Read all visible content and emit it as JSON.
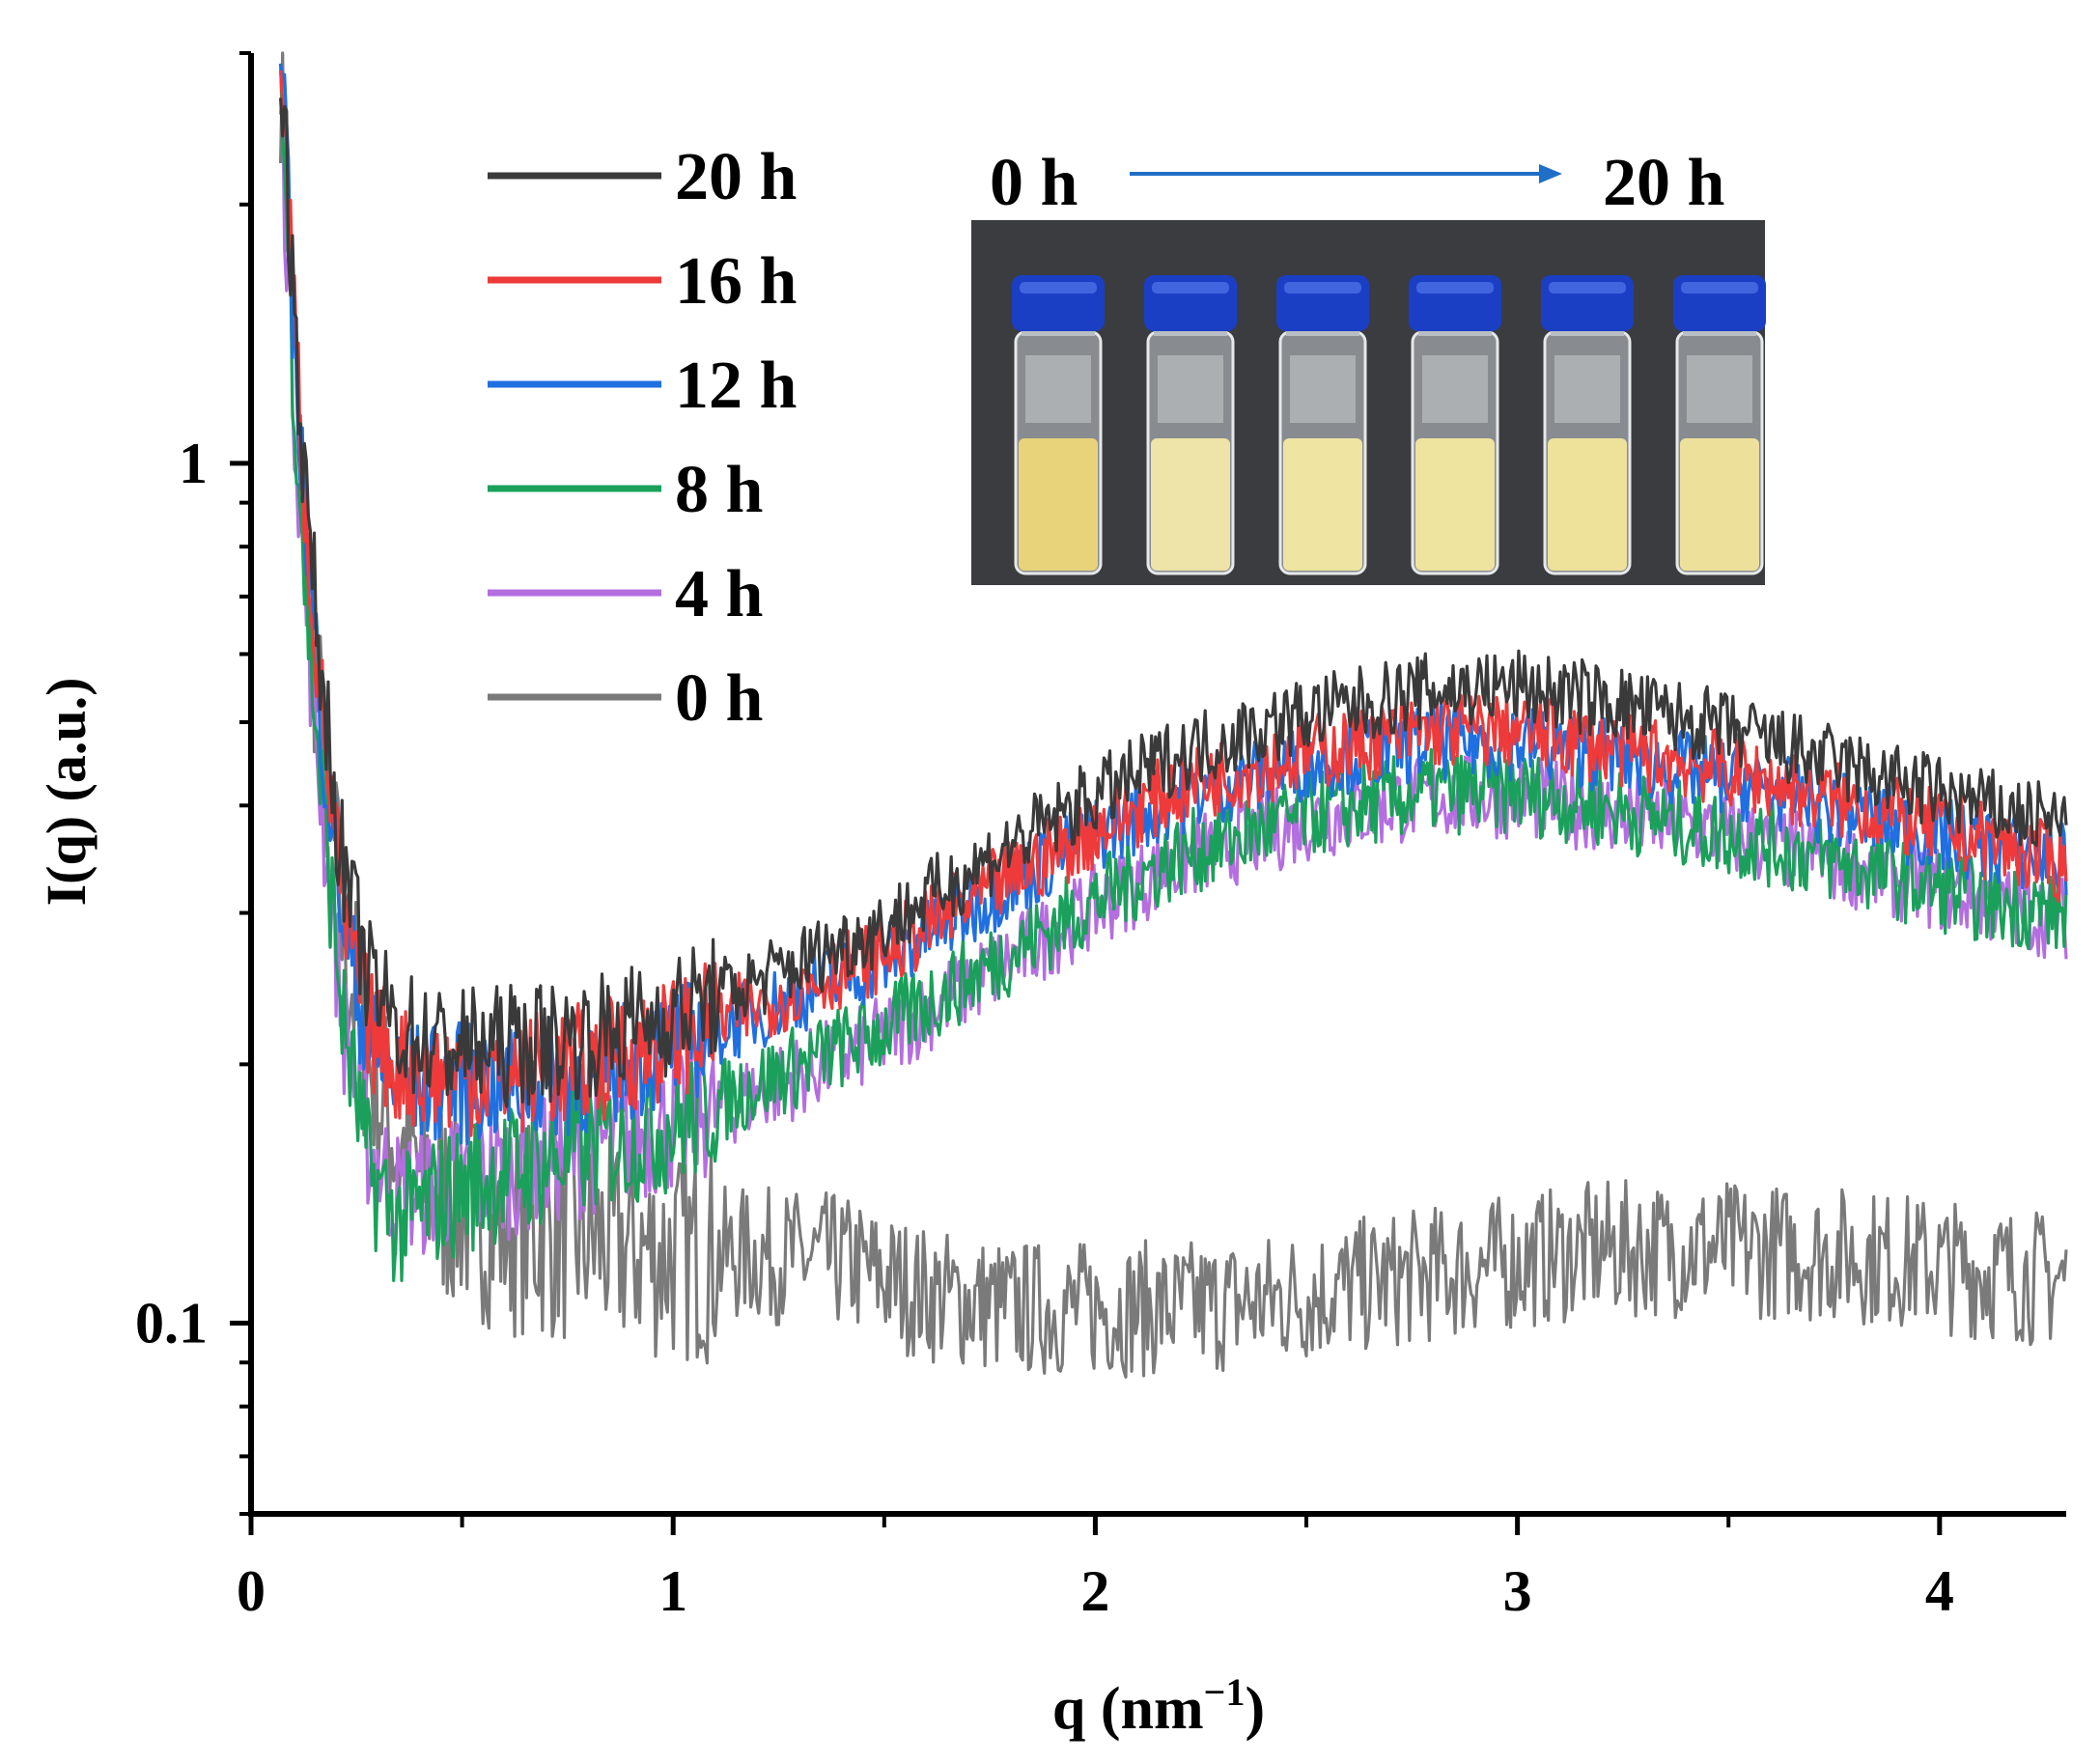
{
  "chart_data": {
    "type": "line",
    "title": "",
    "xlabel": "q (nm",
    "xlabel_superscript": "−1",
    "xlabel_close": ")",
    "ylabel": "I(q) (a.u.)",
    "x_scale": "linear",
    "y_scale": "log",
    "xlim": [
      0,
      4.3
    ],
    "ylim": [
      0.06,
      3.0
    ],
    "x_ticks": [
      0,
      1,
      2,
      3,
      4
    ],
    "x_tick_labels": [
      "0",
      "1",
      "2",
      "3",
      "4"
    ],
    "y_ticks": [
      0.1,
      1
    ],
    "y_tick_labels": [
      "0.1",
      "1"
    ],
    "legend_position": "upper-left",
    "series": [
      {
        "name": "20 h",
        "color": "#3a3a3a",
        "x": [
          0.07,
          0.1,
          0.13,
          0.17,
          0.22,
          0.28,
          0.35,
          0.45,
          0.6,
          0.8,
          1.0,
          1.2,
          1.5,
          1.8,
          2.0,
          2.2,
          2.5,
          2.8,
          3.0,
          3.2,
          3.5,
          3.8,
          4.1,
          4.3
        ],
        "y": [
          3.0,
          1.6,
          0.9,
          0.55,
          0.33,
          0.25,
          0.22,
          0.21,
          0.21,
          0.215,
          0.23,
          0.25,
          0.29,
          0.36,
          0.41,
          0.46,
          0.51,
          0.545,
          0.55,
          0.53,
          0.49,
          0.44,
          0.4,
          0.38
        ]
      },
      {
        "name": "16 h",
        "color": "#ee3a3a",
        "x": [
          0.07,
          0.1,
          0.13,
          0.17,
          0.22,
          0.28,
          0.35,
          0.45,
          0.6,
          0.8,
          1.0,
          1.2,
          1.5,
          1.8,
          2.0,
          2.2,
          2.5,
          2.8,
          3.0,
          3.2,
          3.5,
          3.8,
          4.1,
          4.3
        ],
        "y": [
          3.0,
          1.55,
          0.86,
          0.5,
          0.3,
          0.22,
          0.2,
          0.195,
          0.195,
          0.2,
          0.215,
          0.235,
          0.27,
          0.33,
          0.375,
          0.42,
          0.46,
          0.49,
          0.49,
          0.47,
          0.44,
          0.4,
          0.365,
          0.34
        ]
      },
      {
        "name": "12 h",
        "color": "#1f6fe0",
        "x": [
          0.07,
          0.1,
          0.13,
          0.17,
          0.22,
          0.28,
          0.35,
          0.45,
          0.6,
          0.8,
          1.0,
          1.2,
          1.5,
          1.8,
          2.0,
          2.2,
          2.5,
          2.8,
          3.0,
          3.2,
          3.5,
          3.8,
          4.1,
          4.3
        ],
        "y": [
          3.0,
          1.5,
          0.84,
          0.48,
          0.29,
          0.21,
          0.19,
          0.19,
          0.19,
          0.195,
          0.21,
          0.23,
          0.265,
          0.325,
          0.37,
          0.41,
          0.45,
          0.475,
          0.475,
          0.46,
          0.43,
          0.39,
          0.36,
          0.345
        ]
      },
      {
        "name": "8 h",
        "color": "#1aa05a",
        "x": [
          0.07,
          0.1,
          0.13,
          0.17,
          0.22,
          0.28,
          0.35,
          0.45,
          0.6,
          0.8,
          1.0,
          1.2,
          1.5,
          1.8,
          2.0,
          2.2,
          2.5,
          2.8,
          3.0,
          3.2,
          3.5,
          3.8,
          4.1,
          4.3
        ],
        "y": [
          2.8,
          1.3,
          0.7,
          0.4,
          0.22,
          0.15,
          0.13,
          0.14,
          0.15,
          0.16,
          0.17,
          0.19,
          0.22,
          0.27,
          0.31,
          0.35,
          0.39,
          0.415,
          0.415,
          0.4,
          0.37,
          0.34,
          0.31,
          0.3
        ]
      },
      {
        "name": "4 h",
        "color": "#b46ee0",
        "x": [
          0.07,
          0.1,
          0.13,
          0.17,
          0.22,
          0.28,
          0.35,
          0.45,
          0.6,
          0.8,
          1.0,
          1.2,
          1.5,
          1.8,
          2.0,
          2.2,
          2.5,
          2.8,
          3.0,
          3.2,
          3.5,
          3.8,
          4.1,
          4.3
        ],
        "y": [
          2.7,
          1.25,
          0.68,
          0.39,
          0.22,
          0.16,
          0.14,
          0.145,
          0.15,
          0.16,
          0.17,
          0.185,
          0.215,
          0.265,
          0.305,
          0.345,
          0.385,
          0.41,
          0.41,
          0.395,
          0.37,
          0.34,
          0.31,
          0.295
        ]
      },
      {
        "name": "0 h",
        "color": "#7a7a7a",
        "x": [
          0.07,
          0.1,
          0.13,
          0.17,
          0.22,
          0.28,
          0.35,
          0.45,
          0.6,
          0.8,
          1.0,
          1.2,
          1.4,
          1.6,
          1.8,
          2.0,
          2.2,
          2.4,
          2.6,
          2.8,
          3.0,
          3.2,
          3.5,
          3.8,
          4.1,
          4.3
        ],
        "y": [
          3.0,
          1.4,
          0.8,
          0.45,
          0.28,
          0.2,
          0.16,
          0.14,
          0.13,
          0.125,
          0.12,
          0.12,
          0.118,
          0.108,
          0.104,
          0.104,
          0.104,
          0.106,
          0.11,
          0.114,
          0.118,
          0.122,
          0.122,
          0.12,
          0.115,
          0.112
        ]
      }
    ],
    "inset": {
      "label_start": "0 h",
      "label_end": "20 h",
      "vial_count": 6,
      "vial_liquid_colors": [
        "#e8d37a",
        "#eee3a8",
        "#efe4a2",
        "#efe3a0",
        "#eee29b",
        "#ede09a"
      ]
    }
  }
}
